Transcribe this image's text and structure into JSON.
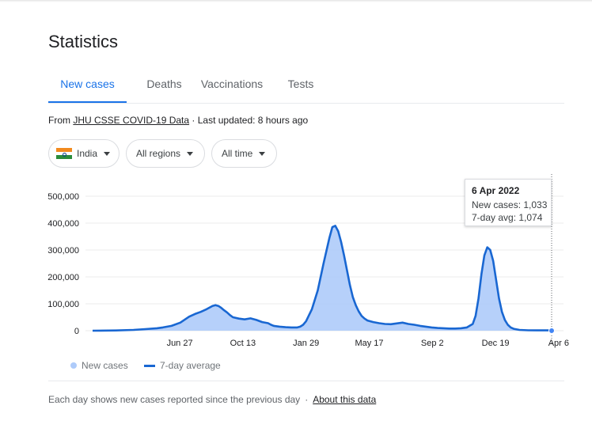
{
  "title": "Statistics",
  "tabs": [
    {
      "label": "New cases",
      "active": true
    },
    {
      "label": "Deaths",
      "active": false
    },
    {
      "label": "Vaccinations",
      "active": false
    },
    {
      "label": "Tests",
      "active": false
    }
  ],
  "source": {
    "prefix": "From",
    "link": "JHU CSSE COVID-19 Data",
    "updated": "· Last updated: 8 hours ago"
  },
  "filters": {
    "country": {
      "label": "India",
      "icon": "india-flag-icon"
    },
    "region": {
      "label": "All regions"
    },
    "time": {
      "label": "All time"
    }
  },
  "tooltip": {
    "date": "6 Apr 2022",
    "new_cases": "New cases: 1,033",
    "avg": "7-day avg: 1,074"
  },
  "legend": {
    "new_cases": "New cases",
    "avg": "7-day average"
  },
  "footer": {
    "note": "Each day shows new cases reported since the previous day",
    "sep": "·",
    "link": "About this data"
  },
  "colors": {
    "accent": "#1a73e8",
    "area": "#aecbfa",
    "line": "#1967d2",
    "grid": "#ebebeb"
  },
  "chart_data": {
    "type": "area",
    "ylabels": [
      "500,000",
      "400,000",
      "300,000",
      "200,000",
      "100,000",
      "0"
    ],
    "ylim": [
      0,
      500000
    ],
    "xlim": [
      0,
      785
    ],
    "xticks": [
      {
        "label": "Jun 27",
        "day": 149
      },
      {
        "label": "Oct 13",
        "day": 257
      },
      {
        "label": "Jan 29",
        "day": 365
      },
      {
        "label": "May 17",
        "day": 473
      },
      {
        "label": "Sep 2",
        "day": 581
      },
      {
        "label": "Dec 19",
        "day": 689
      },
      {
        "label": "Apr 6",
        "day": 797
      }
    ],
    "series": [
      {
        "name": "New cases",
        "type": "area"
      },
      {
        "name": "7-day average",
        "type": "line"
      }
    ],
    "x": [
      0,
      40,
      70,
      90,
      110,
      120,
      135,
      150,
      165,
      175,
      185,
      195,
      205,
      210,
      215,
      220,
      225,
      230,
      235,
      240,
      250,
      260,
      270,
      280,
      290,
      300,
      305,
      310,
      320,
      330,
      340,
      350,
      355,
      360,
      365,
      375,
      385,
      395,
      405,
      410,
      415,
      420,
      425,
      430,
      435,
      440,
      445,
      450,
      455,
      460,
      465,
      470,
      480,
      490,
      500,
      510,
      520,
      530,
      540,
      550,
      560,
      570,
      580,
      590,
      600,
      610,
      620,
      630,
      640,
      650,
      655,
      660,
      665,
      670,
      675,
      680,
      685,
      690,
      695,
      700,
      705,
      710,
      715,
      720,
      730,
      745,
      760,
      780,
      785
    ],
    "values": [
      0,
      1000,
      3000,
      6000,
      9000,
      12000,
      18000,
      30000,
      52000,
      62000,
      70000,
      80000,
      92000,
      95000,
      92000,
      85000,
      76000,
      68000,
      58000,
      50000,
      45000,
      42000,
      46000,
      40000,
      32000,
      28000,
      22000,
      18000,
      15000,
      13000,
      12000,
      12000,
      15000,
      22000,
      35000,
      80000,
      150000,
      250000,
      345000,
      385000,
      390000,
      370000,
      330000,
      280000,
      225000,
      170000,
      125000,
      95000,
      72000,
      55000,
      45000,
      38000,
      32000,
      28000,
      25000,
      24000,
      27000,
      30000,
      25000,
      22000,
      18000,
      15000,
      12000,
      10000,
      9000,
      8000,
      8000,
      9000,
      12000,
      25000,
      55000,
      120000,
      210000,
      280000,
      310000,
      300000,
      260000,
      190000,
      120000,
      70000,
      40000,
      22000,
      12000,
      7000,
      3000,
      1500,
      1100,
      1050,
      1074
    ]
  }
}
